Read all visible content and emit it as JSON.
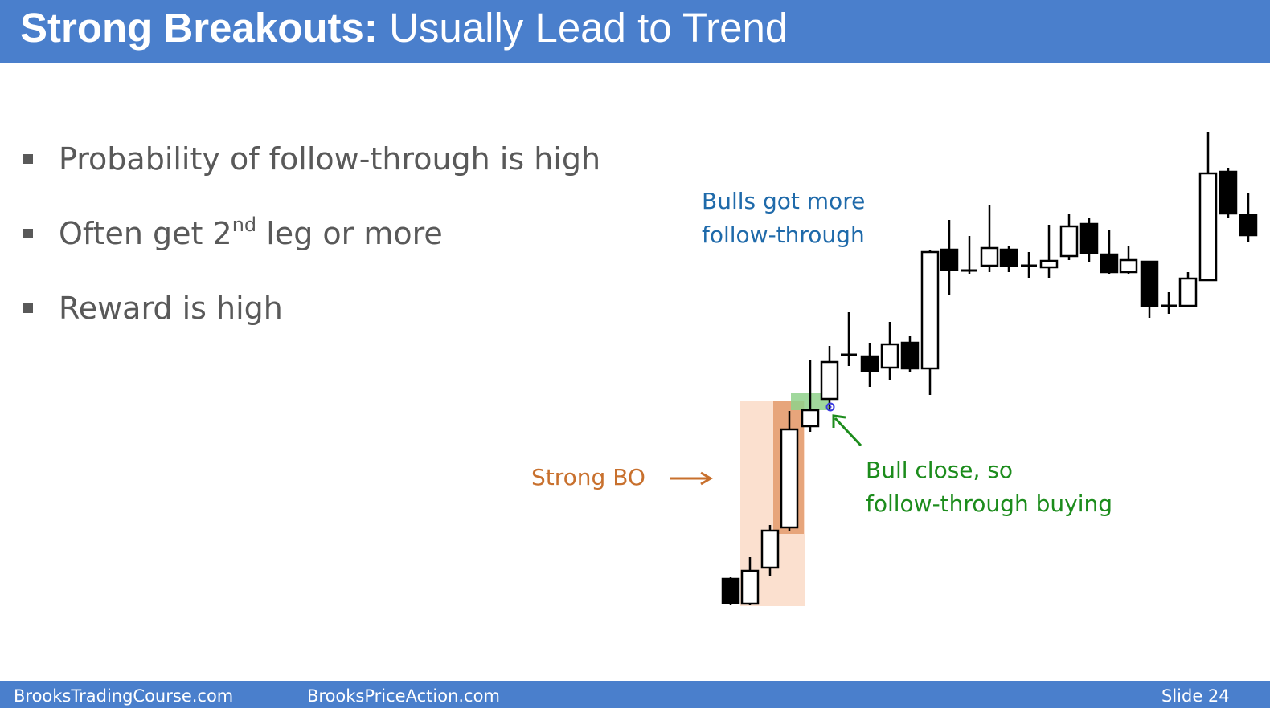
{
  "header": {
    "title_bold": "Strong Breakouts:",
    "title_rest": "Usually Lead to Trend"
  },
  "bullets": [
    {
      "text": "Probability of follow-through is high"
    },
    {
      "text_before": "Often get 2",
      "superscript": "nd",
      "text_after": " leg or more"
    },
    {
      "text": "Reward is high"
    }
  ],
  "annotations": {
    "bulls": [
      "Bulls got more",
      "follow-through"
    ],
    "strong_bo": "Strong BO",
    "bull_close": [
      "Bull close, so",
      "follow-through buying"
    ]
  },
  "footer": {
    "site1": "BrooksTradingCourse.com",
    "site2": "BrooksPriceAction.com",
    "slide": "Slide  24"
  },
  "colors": {
    "header_blue": "#4a7fcc",
    "bullet_gray": "#595959",
    "annotation_blue": "#1f6aaa",
    "annotation_orange": "#c8702d",
    "annotation_green": "#1c8c1c",
    "bear_candle": "#000000",
    "bull_candle": "#ffffff"
  }
}
